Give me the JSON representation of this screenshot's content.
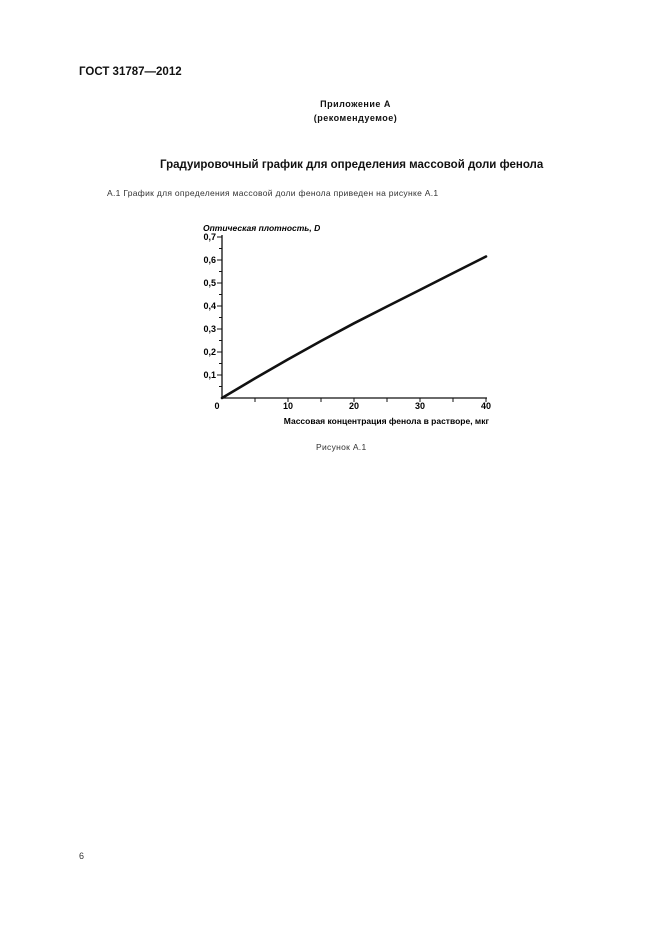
{
  "header": {
    "doc_code": "ГОСТ 31787—2012"
  },
  "appendix": {
    "title": "Приложение А",
    "status": "(рекомендуемое)"
  },
  "section_title": "Градуировочный график для определения массовой доли фенола",
  "paragraph": "А.1  График для определения массовой доли фенола приведен на рисунке А.1",
  "figure_caption": "Рисунок А.1",
  "page_number": "6",
  "chart_data": {
    "type": "line",
    "xlabel": "Массовая концентрация фенола в растворе, мкг",
    "ylabel": "Оптическая плотность, D",
    "xlim": [
      0,
      40
    ],
    "ylim": [
      0,
      0.7
    ],
    "x_ticks": [
      "0",
      "10",
      "20",
      "30",
      "40"
    ],
    "y_ticks": [
      "0,1",
      "0,2",
      "0,3",
      "0,4",
      "0,5",
      "0,6",
      "0,7"
    ],
    "grid": false,
    "series": [
      {
        "x": [
          0,
          5,
          10,
          15,
          20,
          25,
          30,
          35,
          40
        ],
        "y": [
          0,
          0.085,
          0.168,
          0.248,
          0.325,
          0.398,
          0.47,
          0.543,
          0.615
        ]
      }
    ],
    "line_color": "#111111"
  }
}
